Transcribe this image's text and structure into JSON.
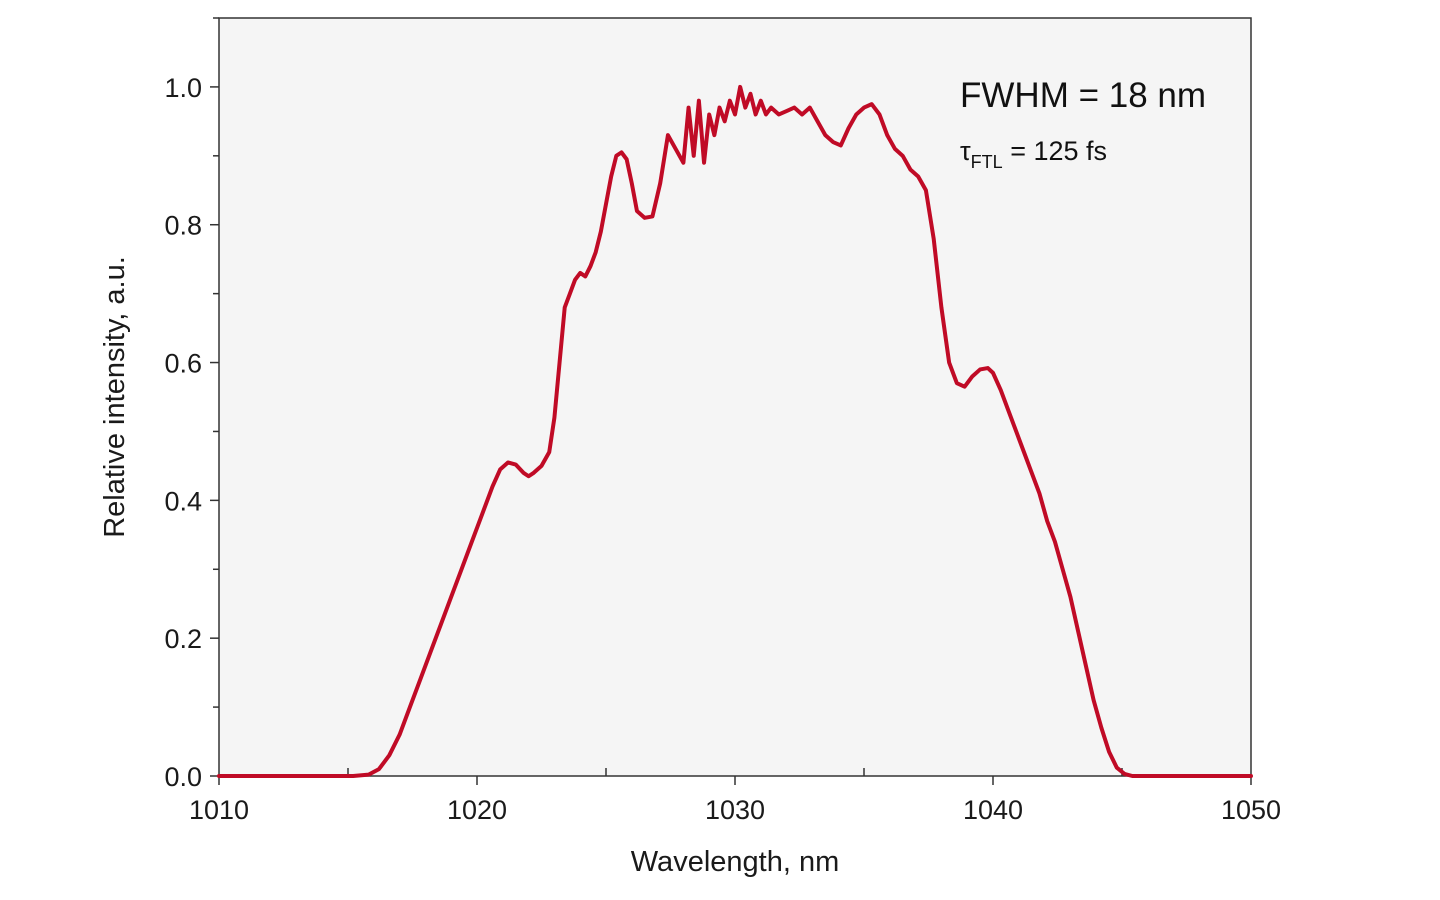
{
  "chart_data": {
    "type": "line",
    "title": "",
    "xlabel": "Wavelength, nm",
    "ylabel": "Relative intensity, a.u.",
    "xlim": [
      1010,
      1050
    ],
    "ylim": [
      0,
      1.1
    ],
    "x_ticks": [
      1010,
      1020,
      1030,
      1040,
      1050
    ],
    "x_tick_labels": [
      "1010",
      "1020",
      "1030",
      "1040",
      "1050"
    ],
    "y_ticks": [
      0,
      0.2,
      0.4,
      0.6,
      0.8,
      1.0
    ],
    "y_tick_labels": [
      "0.0",
      "0.2",
      "0.4",
      "0.6",
      "0.8",
      "1.0"
    ],
    "grid": false,
    "annotations": {
      "fwhm": "FWHM = 18 nm",
      "tau_symbol": "τ",
      "tau_subscript": "FTL",
      "tau_value": " = 125 fs"
    },
    "colors": {
      "line": "#c00b26",
      "plot_background": "#f5f5f5"
    },
    "series": [
      {
        "x": [
          1010,
          1014,
          1015.2,
          1015.8,
          1016.2,
          1016.6,
          1017.0,
          1017.4,
          1017.8,
          1018.2,
          1018.6,
          1019.0,
          1019.4,
          1019.8,
          1020.2,
          1020.6,
          1020.9,
          1021.2,
          1021.5,
          1021.8,
          1022.0,
          1022.2,
          1022.5,
          1022.8,
          1023.0,
          1023.2,
          1023.4,
          1023.6,
          1023.8,
          1024.0,
          1024.2,
          1024.4,
          1024.6,
          1024.8,
          1025.0,
          1025.2,
          1025.4,
          1025.6,
          1025.8,
          1026.0,
          1026.2,
          1026.5,
          1026.8,
          1027.1,
          1027.4,
          1027.7,
          1028.0,
          1028.2,
          1028.4,
          1028.6,
          1028.8,
          1029.0,
          1029.2,
          1029.4,
          1029.6,
          1029.8,
          1030.0,
          1030.2,
          1030.4,
          1030.6,
          1030.8,
          1031.0,
          1031.2,
          1031.4,
          1031.7,
          1032.0,
          1032.3,
          1032.6,
          1032.9,
          1033.2,
          1033.5,
          1033.8,
          1034.1,
          1034.4,
          1034.7,
          1035.0,
          1035.3,
          1035.6,
          1035.9,
          1036.2,
          1036.5,
          1036.8,
          1037.1,
          1037.4,
          1037.7,
          1038.0,
          1038.3,
          1038.6,
          1038.9,
          1039.2,
          1039.5,
          1039.8,
          1040.0,
          1040.3,
          1040.6,
          1040.9,
          1041.2,
          1041.5,
          1041.8,
          1042.1,
          1042.4,
          1042.7,
          1043.0,
          1043.3,
          1043.6,
          1043.9,
          1044.2,
          1044.5,
          1044.8,
          1045.1,
          1045.4,
          1045.8,
          1046.5,
          1050
        ],
        "y": [
          0.0,
          0.0,
          0.0,
          0.002,
          0.01,
          0.03,
          0.06,
          0.1,
          0.14,
          0.18,
          0.22,
          0.26,
          0.3,
          0.34,
          0.38,
          0.42,
          0.445,
          0.455,
          0.452,
          0.44,
          0.435,
          0.44,
          0.45,
          0.47,
          0.52,
          0.6,
          0.68,
          0.7,
          0.72,
          0.73,
          0.725,
          0.74,
          0.76,
          0.79,
          0.83,
          0.87,
          0.9,
          0.905,
          0.895,
          0.86,
          0.82,
          0.81,
          0.812,
          0.86,
          0.93,
          0.91,
          0.89,
          0.97,
          0.9,
          0.98,
          0.89,
          0.96,
          0.93,
          0.97,
          0.95,
          0.98,
          0.96,
          1.0,
          0.97,
          0.99,
          0.96,
          0.98,
          0.96,
          0.97,
          0.96,
          0.965,
          0.97,
          0.96,
          0.97,
          0.95,
          0.93,
          0.92,
          0.915,
          0.94,
          0.96,
          0.97,
          0.975,
          0.96,
          0.93,
          0.91,
          0.9,
          0.88,
          0.87,
          0.85,
          0.78,
          0.68,
          0.6,
          0.57,
          0.565,
          0.58,
          0.59,
          0.592,
          0.585,
          0.56,
          0.53,
          0.5,
          0.47,
          0.44,
          0.41,
          0.37,
          0.34,
          0.3,
          0.26,
          0.21,
          0.16,
          0.11,
          0.07,
          0.035,
          0.012,
          0.003,
          0.0,
          0.0,
          0.0,
          0.0
        ]
      }
    ]
  }
}
